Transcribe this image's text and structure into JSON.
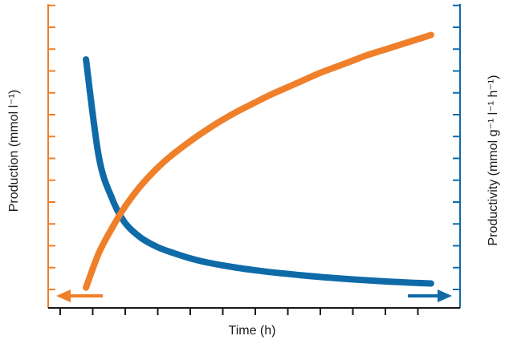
{
  "chart_data": {
    "type": "line",
    "title": "",
    "xlabel": "Time (h)",
    "y_left_label": "Production (mmol l⁻¹)",
    "y_right_label": "Productivity (mmol g⁻¹ l⁻¹ h⁻¹)",
    "xlim": [
      0,
      12
    ],
    "ylim_left": [
      0,
      13
    ],
    "ylim_right": [
      0,
      13
    ],
    "grid": false,
    "colors": {
      "production": "#F07F2A",
      "productivity": "#0F6BA8"
    },
    "axis_arrows": [
      {
        "series": "production",
        "direction": "left"
      },
      {
        "series": "productivity",
        "direction": "right"
      }
    ],
    "series": [
      {
        "id": "production",
        "axis": "left",
        "x": [
          0.8,
          1.2,
          1.6,
          2.0,
          2.5,
          3.0,
          3.5,
          4.0,
          4.5,
          5.0,
          5.5,
          6.0,
          6.5,
          7.0,
          7.5,
          8.0,
          8.5,
          9.0,
          9.5,
          10.0,
          10.5,
          11.0,
          11.5
        ],
        "values": [
          1.0,
          2.7,
          3.9,
          4.95,
          6.0,
          6.85,
          7.55,
          8.15,
          8.7,
          9.2,
          9.65,
          10.05,
          10.45,
          10.8,
          11.15,
          11.5,
          11.8,
          12.1,
          12.4,
          12.65,
          12.9,
          13.15,
          13.4
        ]
      },
      {
        "id": "productivity",
        "axis": "right",
        "x": [
          0.8,
          1.2,
          1.6,
          2.0,
          2.5,
          3.0,
          3.5,
          4.0,
          4.5,
          5.0,
          5.5,
          6.0,
          6.5,
          7.0,
          7.5,
          8.0,
          8.5,
          9.0,
          9.5,
          10.0,
          10.5,
          11.0,
          11.5
        ],
        "values": [
          12.2,
          7.4,
          5.4,
          4.2,
          3.45,
          3.0,
          2.7,
          2.45,
          2.25,
          2.1,
          1.97,
          1.86,
          1.76,
          1.68,
          1.6,
          1.53,
          1.47,
          1.41,
          1.36,
          1.31,
          1.27,
          1.23,
          1.2
        ]
      }
    ]
  }
}
